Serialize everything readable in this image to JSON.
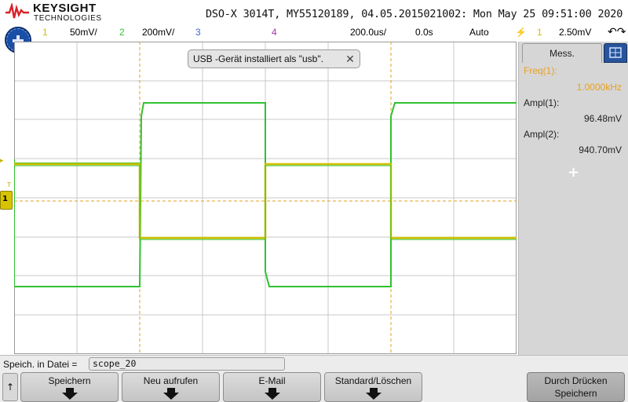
{
  "header": {
    "brand": "KEYSIGHT",
    "brand_sub": "TECHNOLOGIES",
    "title": "DSO-X 3014T, MY55120189, 04.05.2015021002: Mon May 25 09:51:00 2020"
  },
  "status": {
    "ch1_num": "1",
    "ch1_scale": "50mV/",
    "ch2_num": "2",
    "ch2_scale": "200mV/",
    "ch3_num": "3",
    "ch4_num": "4",
    "timebase": "200.0us/",
    "delay": "0.0s",
    "trigger_mode": "Auto",
    "trigger_src": "1",
    "trigger_level": "2.50mV",
    "colors": {
      "ch1": "#d2bf00",
      "ch2": "#2fc22f",
      "ch3": "#3a66cc",
      "ch4": "#aa33aa"
    }
  },
  "toast": {
    "text": "USB -Gerät installiert als \"usb\"."
  },
  "markers": {
    "trigger": "T"
  },
  "panel": {
    "tab_label": "Mess.",
    "freq_label": "Freq(1):",
    "freq_value": "1.0000kHz",
    "ampl1_label": "Ampl(1):",
    "ampl1_value": "96.48mV",
    "ampl2_label": "Ampl(2):",
    "ampl2_value": "940.70mV",
    "add_symbol": "+"
  },
  "bottom": {
    "save_label": "Speich. in Datei =",
    "filename": "scope_20",
    "up_arrow": "↑",
    "softkeys": [
      "Speichern",
      "Neu aufrufen",
      "E-Mail",
      "Standard/Löschen"
    ],
    "print_label_1": "Durch Drücken",
    "print_label_2": "Speichern"
  },
  "icons": {
    "logo": "keysight-wave-logo",
    "home": "home-icon",
    "settings": "tab-display-icon",
    "close": "close-icon"
  }
}
